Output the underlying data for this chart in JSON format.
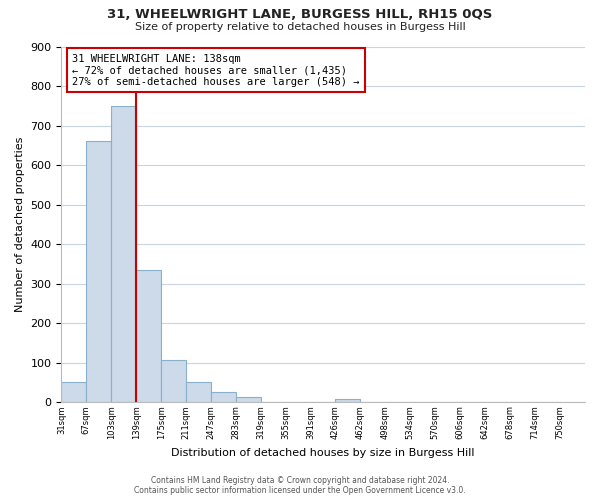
{
  "title": "31, WHEELWRIGHT LANE, BURGESS HILL, RH15 0QS",
  "subtitle": "Size of property relative to detached houses in Burgess Hill",
  "xlabel": "Distribution of detached houses by size in Burgess Hill",
  "ylabel": "Number of detached properties",
  "bar_left_edges": [
    31,
    67,
    103,
    139,
    175,
    211,
    247,
    283,
    319,
    355,
    391,
    426,
    462,
    498,
    534,
    570,
    606,
    642,
    678,
    714
  ],
  "bar_widths": [
    36,
    36,
    36,
    36,
    36,
    36,
    36,
    36,
    36,
    36,
    35,
    36,
    36,
    36,
    36,
    36,
    36,
    36,
    36,
    36
  ],
  "bar_heights": [
    52,
    661,
    750,
    335,
    108,
    52,
    27,
    14,
    0,
    0,
    0,
    9,
    0,
    0,
    0,
    0,
    0,
    0,
    0,
    0
  ],
  "bar_color": "#ccdaea",
  "bar_edgecolor": "#8ab0cc",
  "tick_labels": [
    "31sqm",
    "67sqm",
    "103sqm",
    "139sqm",
    "175sqm",
    "211sqm",
    "247sqm",
    "283sqm",
    "319sqm",
    "355sqm",
    "391sqm",
    "426sqm",
    "462sqm",
    "498sqm",
    "534sqm",
    "570sqm",
    "606sqm",
    "642sqm",
    "678sqm",
    "714sqm",
    "750sqm"
  ],
  "tick_positions": [
    31,
    67,
    103,
    139,
    175,
    211,
    247,
    283,
    319,
    355,
    391,
    426,
    462,
    498,
    534,
    570,
    606,
    642,
    678,
    714,
    750
  ],
  "ylim": [
    0,
    900
  ],
  "yticks": [
    0,
    100,
    200,
    300,
    400,
    500,
    600,
    700,
    800,
    900
  ],
  "vline_x": 139,
  "vline_color": "#cc0000",
  "annotation_title": "31 WHEELWRIGHT LANE: 138sqm",
  "annotation_line2": "← 72% of detached houses are smaller (1,435)",
  "annotation_line3": "27% of semi-detached houses are larger (548) →",
  "footer_line1": "Contains HM Land Registry data © Crown copyright and database right 2024.",
  "footer_line2": "Contains public sector information licensed under the Open Government Licence v3.0.",
  "background_color": "#ffffff",
  "grid_color": "#c8d4e0"
}
